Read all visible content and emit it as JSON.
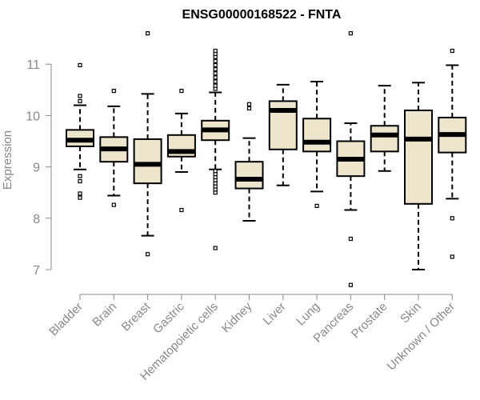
{
  "chart_data": {
    "type": "boxplot",
    "title": "ENSG00000168522 - FNTA",
    "xlabel": "",
    "ylabel": "Expression",
    "ylim": [
      6.6,
      11.9
    ],
    "yticks": [
      7,
      8,
      9,
      10,
      11
    ],
    "colors": {
      "box_fill": "#ede6cd",
      "stroke": "#000000",
      "axis_text": "#888888"
    },
    "categories": [
      "Bladder",
      "Brain",
      "Breast",
      "Gastric",
      "Hematopoietic cells",
      "Kidney",
      "Liver",
      "Lung",
      "Pancreas",
      "Prostate",
      "Skin",
      "Unknown / Other"
    ],
    "boxes": [
      {
        "category": "Bladder",
        "whisker_low": 8.95,
        "q1": 9.4,
        "median": 9.52,
        "q3": 9.72,
        "whisker_high": 10.2,
        "outliers": [
          8.4,
          8.48,
          8.72,
          8.82,
          10.28,
          10.38,
          10.98
        ]
      },
      {
        "category": "Brain",
        "whisker_low": 8.44,
        "q1": 9.1,
        "median": 9.35,
        "q3": 9.58,
        "whisker_high": 10.18,
        "outliers": [
          8.26,
          10.48
        ]
      },
      {
        "category": "Breast",
        "whisker_low": 7.66,
        "q1": 8.68,
        "median": 9.05,
        "q3": 9.54,
        "whisker_high": 10.42,
        "outliers": [
          7.3,
          11.6
        ]
      },
      {
        "category": "Gastric",
        "whisker_low": 8.9,
        "q1": 9.2,
        "median": 9.3,
        "q3": 9.62,
        "whisker_high": 10.04,
        "outliers": [
          8.16,
          10.48
        ]
      },
      {
        "category": "Hematopoietic cells",
        "whisker_low": 8.95,
        "q1": 9.52,
        "median": 9.72,
        "q3": 9.9,
        "whisker_high": 10.45,
        "outliers": [
          7.42,
          8.5,
          8.56,
          8.62,
          8.68,
          8.74,
          8.8,
          8.86,
          8.92,
          10.52,
          10.58,
          10.66,
          10.74,
          10.82,
          10.9,
          10.98,
          11.06,
          11.14,
          11.2,
          11.26
        ]
      },
      {
        "category": "Kidney",
        "whisker_low": 7.95,
        "q1": 8.58,
        "median": 8.76,
        "q3": 9.1,
        "whisker_high": 9.56,
        "outliers": [
          10.14,
          10.22
        ]
      },
      {
        "category": "Liver",
        "whisker_low": 8.64,
        "q1": 9.34,
        "median": 10.1,
        "q3": 10.28,
        "whisker_high": 10.6,
        "outliers": []
      },
      {
        "category": "Lung",
        "whisker_low": 8.52,
        "q1": 9.3,
        "median": 9.48,
        "q3": 9.94,
        "whisker_high": 10.66,
        "outliers": [
          8.24
        ]
      },
      {
        "category": "Pancreas",
        "whisker_low": 8.16,
        "q1": 8.82,
        "median": 9.15,
        "q3": 9.5,
        "whisker_high": 9.85,
        "outliers": [
          6.7,
          7.6,
          11.6
        ]
      },
      {
        "category": "Prostate",
        "whisker_low": 8.92,
        "q1": 9.3,
        "median": 9.62,
        "q3": 9.8,
        "whisker_high": 10.58,
        "outliers": []
      },
      {
        "category": "Skin",
        "whisker_low": 7.0,
        "q1": 8.28,
        "median": 9.54,
        "q3": 10.1,
        "whisker_high": 10.64,
        "outliers": []
      },
      {
        "category": "Unknown / Other",
        "whisker_low": 8.38,
        "q1": 9.28,
        "median": 9.63,
        "q3": 9.96,
        "whisker_high": 10.98,
        "outliers": [
          7.25,
          8.0,
          11.26
        ]
      }
    ]
  }
}
